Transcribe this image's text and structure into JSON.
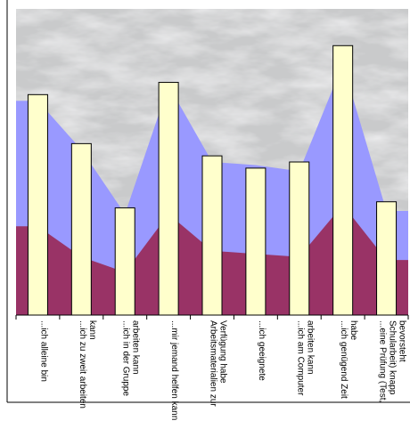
{
  "chart_data": {
    "type": "bar",
    "categories": [
      [
        "...ich alleine bin"
      ],
      [
        "...ich zu zweit arbeiten",
        "kann"
      ],
      [
        "...ich in der Gruppe",
        "arbeiten kann"
      ],
      [
        "...mir jemand helfen kann"
      ],
      [
        "Arbeitsmaterialien zur",
        "Verfügung habe"
      ],
      [
        "...ich geeignete"
      ],
      [
        "...ich am Computer",
        "arbeiten kann"
      ],
      [
        "...ich genügend Zeit",
        "habe"
      ],
      [
        "...eine Prüfung (Test,",
        "Schularbeit) knapp",
        "bevorsteht"
      ]
    ],
    "series": [
      {
        "values": [
          72,
          56,
          35,
          76,
          52,
          48,
          50,
          88,
          37
        ],
        "render": "bar",
        "color": "#ffffcc"
      },
      {
        "values": [
          70,
          54,
          33,
          75,
          50,
          49,
          47,
          82,
          34
        ],
        "render": "area",
        "color": "#9999ff"
      },
      {
        "values": [
          29,
          19,
          14,
          33,
          21,
          20,
          19,
          36,
          18
        ],
        "render": "area",
        "color": "#993366"
      }
    ],
    "ylim": [
      0,
      100
    ],
    "grid": false,
    "legend": "none",
    "background": "grey marble texture"
  }
}
